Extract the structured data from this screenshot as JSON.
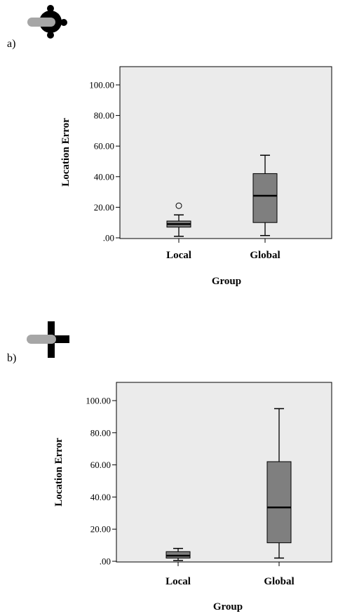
{
  "figure": {
    "panels": [
      {
        "letter": "a)",
        "icon": "circular-dot-cluster-with-gray-bar-icon"
      },
      {
        "letter": "b)",
        "icon": "cross-with-gray-bar-icon"
      }
    ]
  },
  "colors": {
    "plot_background": "#ebebeb",
    "box_fill": "#7f7f7f",
    "icon_gray": "#a6a6a6",
    "icon_black": "#000000"
  },
  "chart_data": [
    {
      "type": "box",
      "panel": "a)",
      "xlabel": "Group",
      "ylabel": "Location Error",
      "ylim": [
        0,
        100
      ],
      "y_ticks": [
        ".00",
        "20.00",
        "40.00",
        "60.00",
        "80.00",
        "100.00"
      ],
      "categories": [
        "Local",
        "Global"
      ],
      "boxes": [
        {
          "category": "Local",
          "whisker_low": 1,
          "q1": 7,
          "median": 9,
          "q3": 11,
          "whisker_high": 15,
          "outliers": [
            21
          ]
        },
        {
          "category": "Global",
          "whisker_low": 1.5,
          "q1": 10,
          "median": 27.5,
          "q3": 42,
          "whisker_high": 54,
          "outliers": []
        }
      ],
      "grid": false,
      "legend": "none"
    },
    {
      "type": "box",
      "panel": "b)",
      "xlabel": "Group",
      "ylabel": "Location Error",
      "ylim": [
        0,
        100
      ],
      "y_ticks": [
        ".00",
        "20.00",
        "40.00",
        "60.00",
        "80.00",
        "100.00"
      ],
      "categories": [
        "Local",
        "Global"
      ],
      "boxes": [
        {
          "category": "Local",
          "whisker_low": 0.5,
          "q1": 2,
          "median": 3.5,
          "q3": 6,
          "whisker_high": 8,
          "outliers": []
        },
        {
          "category": "Global",
          "whisker_low": 2,
          "q1": 11.5,
          "median": 33.5,
          "q3": 62,
          "whisker_high": 95,
          "outliers": []
        }
      ],
      "grid": false,
      "legend": "none"
    }
  ]
}
